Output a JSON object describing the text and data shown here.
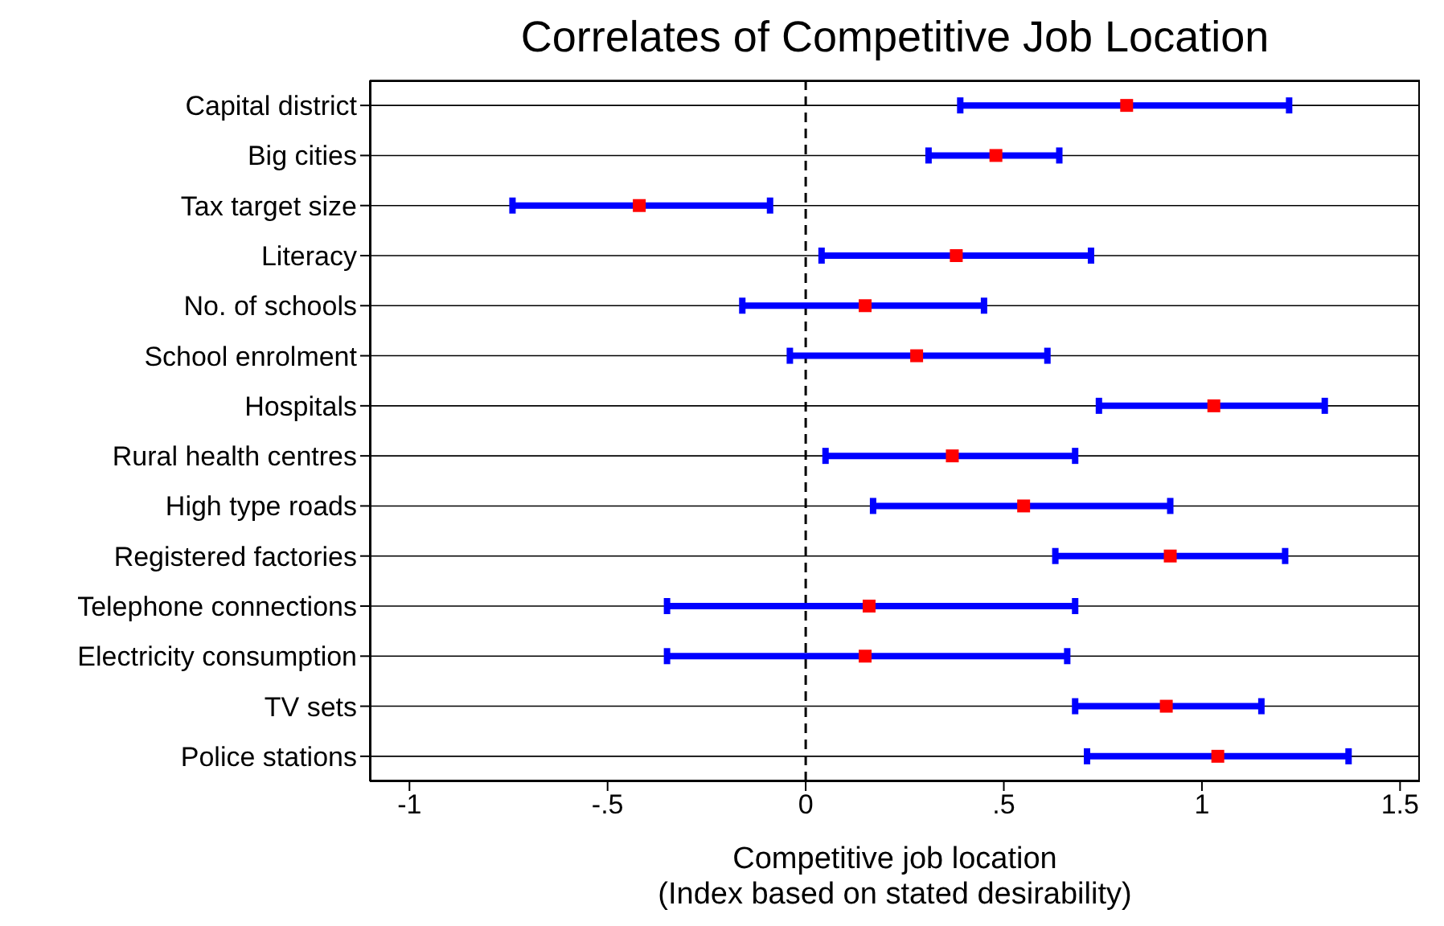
{
  "chart_data": {
    "type": "scatter",
    "title": "Correlates of Competitive Job Location",
    "xlabel": "Competitive job location\n(Index based on stated desirability)",
    "orientation": "horizontal",
    "categories": [
      "Capital district",
      "Big cities",
      "Tax target size",
      "Literacy",
      "No. of schools",
      "School enrolment",
      "Hospitals",
      "Rural health centres",
      "High type roads",
      "Registered factories",
      "Telephone connections",
      "Electricity consumption",
      "TV sets",
      "Police stations"
    ],
    "series": [
      {
        "color": "#ff0000",
        "values": [
          0.81,
          0.48,
          -0.42,
          0.38,
          0.15,
          0.28,
          1.03,
          0.37,
          0.55,
          0.92,
          0.16,
          0.15,
          0.91,
          1.04
        ],
        "errors": [
          [
            0.39,
            1.22
          ],
          [
            0.31,
            0.64
          ],
          [
            -0.74,
            -0.09
          ],
          [
            0.04,
            0.72
          ],
          [
            -0.16,
            0.45
          ],
          [
            -0.04,
            0.61
          ],
          [
            0.74,
            1.31
          ],
          [
            0.05,
            0.68
          ],
          [
            0.17,
            0.92
          ],
          [
            0.63,
            1.21
          ],
          [
            -0.35,
            0.68
          ],
          [
            -0.35,
            0.66
          ],
          [
            0.68,
            1.15
          ],
          [
            0.71,
            1.37
          ]
        ]
      }
    ],
    "xlim": [
      -1.1,
      1.55
    ],
    "xticks": [
      {
        "value": -1,
        "label": "-1"
      },
      {
        "value": -0.5,
        "label": "-.5"
      },
      0,
      {
        "value": 0.5,
        "label": ".5"
      },
      1,
      {
        "value": 1.5,
        "label": "1.5"
      }
    ],
    "ref_lines": [
      {
        "axis": "x",
        "value": 0,
        "line_style": "dashed",
        "color": "#000000"
      }
    ],
    "grid": "y",
    "marker": "square"
  }
}
